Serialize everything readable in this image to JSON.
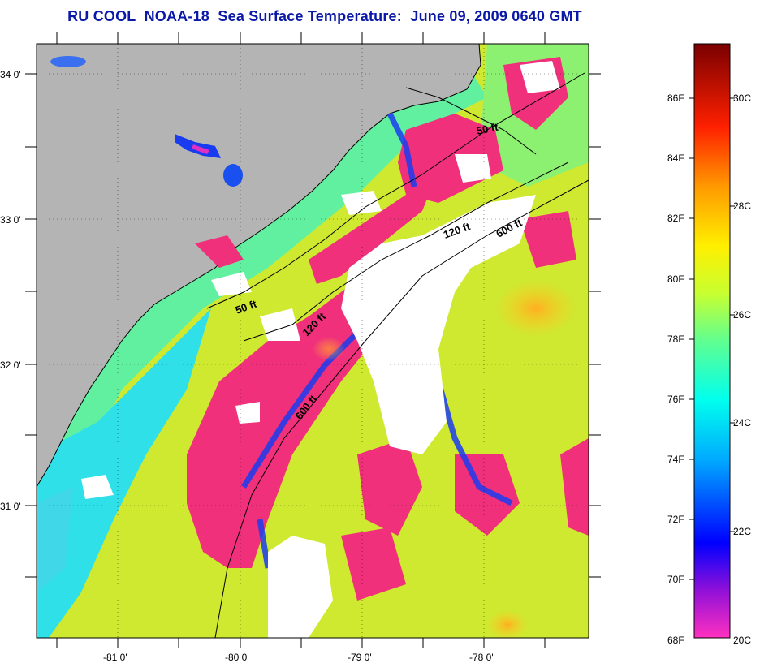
{
  "title": "RU COOL  NOAA-18  Sea Surface Temperature:  June 09, 2009 0640 GMT",
  "map": {
    "lat_ticks": [
      "34 0'",
      "33 0'",
      "32 0'",
      "31 0'"
    ],
    "lon_ticks": [
      "-81 0'",
      "-80 0'",
      "-79 0'",
      "-78 0'"
    ],
    "contours": [
      {
        "label": "50 ft"
      },
      {
        "label": "120 ft"
      },
      {
        "label": "600 ft"
      },
      {
        "label": "50 ft"
      },
      {
        "label": "120 ft"
      },
      {
        "label": "600 ft"
      }
    ],
    "colors": {
      "land": "#b4b4b4",
      "cloud": "#ffffff",
      "warm_water": "#e8e832",
      "cool_water": "#50e8a0"
    }
  },
  "colorbar": {
    "fahrenheit_labels": [
      "86F",
      "84F",
      "82F",
      "80F",
      "78F",
      "76F",
      "74F",
      "72F",
      "70F",
      "68F"
    ],
    "celsius_labels": [
      "30C",
      "28C",
      "26C",
      "24C",
      "22C",
      "20C"
    ],
    "gradient_stops": [
      "#ff30c0",
      "#7010d0",
      "#0000ff",
      "#00c8ff",
      "#50ffb0",
      "#c8ff30",
      "#ffe800",
      "#ff8000",
      "#ff0000",
      "#800000"
    ]
  }
}
